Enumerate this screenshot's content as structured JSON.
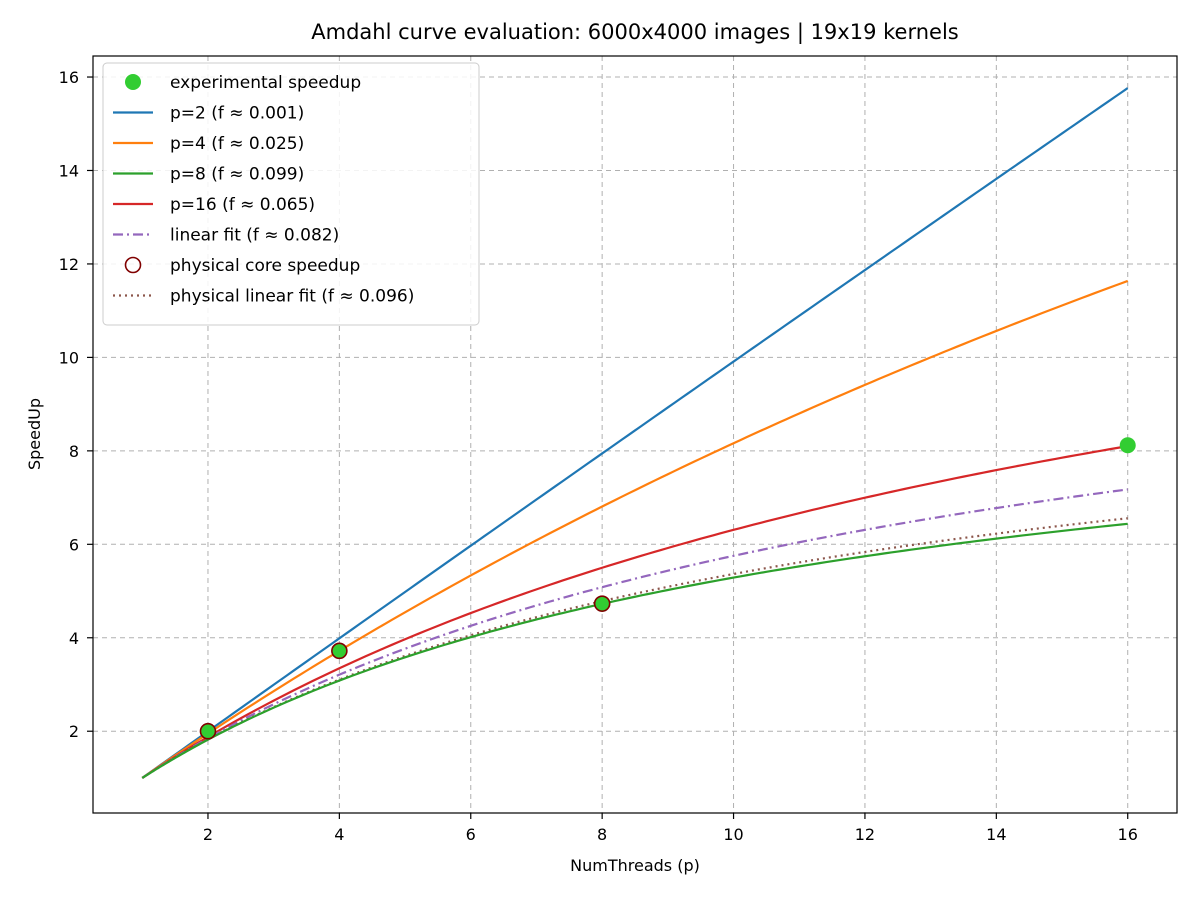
{
  "chart_data": {
    "type": "line",
    "title": "Amdahl curve evaluation: 6000x4000 images | 19x19 kernels",
    "xlabel": "NumThreads (p)",
    "ylabel": "SpeedUp",
    "xlim": [
      0.25,
      16.75
    ],
    "ylim": [
      0.25,
      16.45
    ],
    "xticks": [
      2,
      4,
      6,
      8,
      10,
      12,
      14,
      16
    ],
    "yticks": [
      2,
      4,
      6,
      8,
      10,
      12,
      14,
      16
    ],
    "grid": true,
    "legend_position": "top-left",
    "colors": {
      "experimental": "#32cd32",
      "p2": "#1f77b4",
      "p4": "#ff7f0e",
      "p8": "#2ca02c",
      "p16": "#d62728",
      "linear_fit": "#9467bd",
      "physical_marker": "#800000",
      "physical_fit": "#8c564b"
    },
    "series": [
      {
        "name": "experimental speedup",
        "kind": "scatter",
        "x": [
          2,
          4,
          8,
          16
        ],
        "y": [
          2.0,
          3.72,
          4.73,
          8.12
        ]
      },
      {
        "name": "p=2 (f ≈ 0.001)",
        "kind": "amdahl",
        "f": 0.001
      },
      {
        "name": "p=4 (f ≈ 0.025)",
        "kind": "amdahl",
        "f": 0.025
      },
      {
        "name": "p=8 (f ≈ 0.099)",
        "kind": "amdahl",
        "f": 0.099
      },
      {
        "name": "p=16 (f ≈ 0.065)",
        "kind": "amdahl",
        "f": 0.065
      },
      {
        "name": "linear fit (f ≈ 0.082)",
        "kind": "amdahl",
        "f": 0.082,
        "style": "dashdot"
      },
      {
        "name": "physical core speedup",
        "kind": "scatter_open",
        "x": [
          2,
          4,
          8
        ],
        "y": [
          2.0,
          3.72,
          4.73
        ]
      },
      {
        "name": "physical linear fit (f ≈ 0.096)",
        "kind": "amdahl",
        "f": 0.096,
        "style": "dotted"
      }
    ]
  }
}
